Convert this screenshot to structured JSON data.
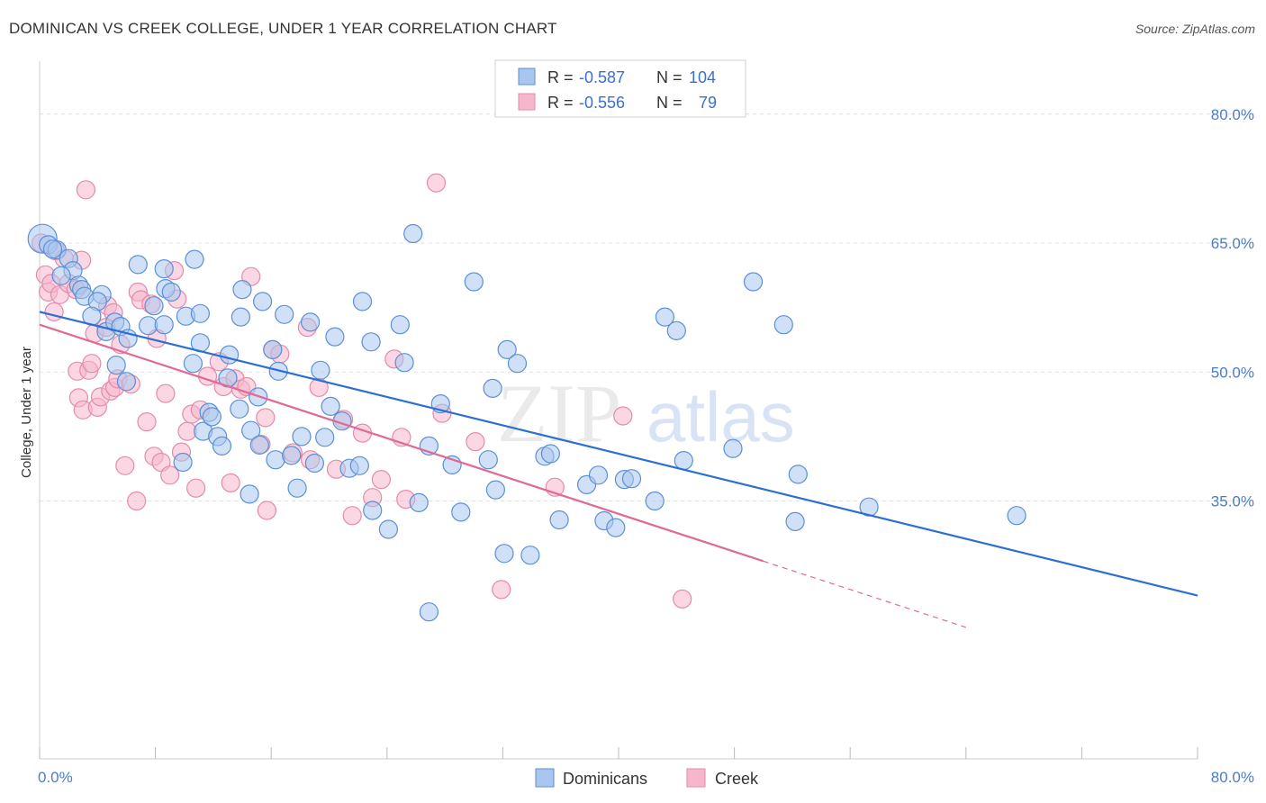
{
  "header": {
    "title": "DOMINICAN VS CREEK COLLEGE, UNDER 1 YEAR CORRELATION CHART",
    "source": "Source: ZipAtlas.com"
  },
  "watermark": {
    "zip": "ZIP",
    "atlas": "atlas"
  },
  "legend_top": [
    {
      "r_label": "R =",
      "r_value": "-0.587",
      "n_label": "N =",
      "n_value": "104"
    },
    {
      "r_label": "R =",
      "r_value": "-0.556",
      "n_label": "N =",
      "n_value": "79"
    }
  ],
  "legend_bottom": [
    "Dominicans",
    "Creek"
  ],
  "chart_data": {
    "type": "scatter",
    "title": "DOMINICAN VS CREEK COLLEGE, UNDER 1 YEAR CORRELATION CHART",
    "xlabel": "",
    "ylabel": "College, Under 1 year",
    "xlim": [
      0,
      80
    ],
    "ylim": [
      20,
      82
    ],
    "x_tick_labels": [
      "0.0%",
      "80.0%"
    ],
    "y_ticks": [
      35,
      50,
      65,
      80
    ],
    "y_tick_labels": [
      "35.0%",
      "50.0%",
      "65.0%",
      "80.0%"
    ],
    "grid": true,
    "legend_position": "top-center",
    "colors": {
      "dominicans_fill": "#a9c7ee",
      "dominicans_stroke": "#5b8fd6",
      "dominicans_line": "#2a6fd1",
      "creek_fill": "#f6b7cc",
      "creek_stroke": "#e48aab",
      "creek_line": "#e06a97",
      "tick_text": "#4a7cc9"
    },
    "series": [
      {
        "name": "Dominicans",
        "trend": {
          "x": [
            0,
            80
          ],
          "y": [
            57.0,
            24.0
          ]
        },
        "points": [
          [
            0.2,
            65.5
          ],
          [
            0.6,
            64.8
          ],
          [
            1.2,
            64.2
          ],
          [
            2.0,
            63.2
          ],
          [
            2.3,
            61.8
          ],
          [
            1.5,
            61.2
          ],
          [
            2.7,
            60.1
          ],
          [
            2.9,
            59.6
          ],
          [
            3.1,
            58.8
          ],
          [
            4.3,
            59.0
          ],
          [
            4.0,
            58.2
          ],
          [
            3.6,
            56.5
          ],
          [
            4.6,
            54.7
          ],
          [
            5.2,
            55.8
          ],
          [
            5.6,
            55.3
          ],
          [
            5.3,
            50.8
          ],
          [
            6.0,
            48.9
          ],
          [
            6.1,
            53.9
          ],
          [
            6.8,
            62.5
          ],
          [
            7.5,
            55.4
          ],
          [
            7.9,
            57.7
          ],
          [
            8.6,
            62.0
          ],
          [
            8.6,
            55.5
          ],
          [
            8.7,
            59.7
          ],
          [
            9.1,
            59.3
          ],
          [
            10.1,
            56.5
          ],
          [
            10.6,
            51.0
          ],
          [
            10.7,
            63.1
          ],
          [
            11.1,
            56.8
          ],
          [
            11.1,
            53.4
          ],
          [
            11.3,
            43.1
          ],
          [
            11.7,
            45.3
          ],
          [
            11.9,
            44.8
          ],
          [
            12.3,
            42.5
          ],
          [
            12.6,
            41.4
          ],
          [
            13.0,
            49.3
          ],
          [
            13.1,
            52.0
          ],
          [
            13.8,
            45.7
          ],
          [
            13.9,
            56.4
          ],
          [
            14.6,
            43.2
          ],
          [
            14.5,
            35.8
          ],
          [
            15.1,
            47.1
          ],
          [
            15.2,
            41.5
          ],
          [
            15.4,
            58.2
          ],
          [
            16.1,
            52.6
          ],
          [
            16.3,
            39.8
          ],
          [
            16.5,
            50.1
          ],
          [
            16.9,
            56.7
          ],
          [
            17.4,
            40.3
          ],
          [
            17.8,
            36.5
          ],
          [
            18.1,
            42.5
          ],
          [
            18.7,
            55.8
          ],
          [
            19.0,
            39.4
          ],
          [
            19.4,
            50.2
          ],
          [
            19.7,
            42.4
          ],
          [
            20.1,
            46.0
          ],
          [
            20.4,
            54.1
          ],
          [
            20.9,
            44.3
          ],
          [
            21.4,
            38.8
          ],
          [
            22.1,
            39.1
          ],
          [
            22.3,
            58.2
          ],
          [
            22.9,
            53.5
          ],
          [
            23.0,
            33.9
          ],
          [
            24.1,
            31.7
          ],
          [
            24.9,
            55.5
          ],
          [
            25.2,
            51.1
          ],
          [
            25.8,
            66.1
          ],
          [
            26.2,
            34.8
          ],
          [
            26.9,
            41.4
          ],
          [
            27.7,
            46.3
          ],
          [
            28.5,
            39.2
          ],
          [
            29.1,
            33.7
          ],
          [
            30.0,
            60.5
          ],
          [
            31.0,
            39.8
          ],
          [
            31.3,
            48.1
          ],
          [
            31.5,
            36.3
          ],
          [
            32.1,
            28.9
          ],
          [
            32.3,
            52.6
          ],
          [
            33.0,
            51.0
          ],
          [
            33.9,
            28.7
          ],
          [
            34.9,
            40.2
          ],
          [
            35.3,
            40.5
          ],
          [
            35.9,
            32.8
          ],
          [
            37.8,
            36.9
          ],
          [
            38.6,
            38.0
          ],
          [
            39.0,
            32.7
          ],
          [
            39.8,
            31.9
          ],
          [
            40.4,
            37.5
          ],
          [
            40.9,
            37.6
          ],
          [
            42.5,
            35.0
          ],
          [
            43.2,
            56.4
          ],
          [
            44.0,
            54.8
          ],
          [
            44.5,
            39.7
          ],
          [
            47.9,
            41.1
          ],
          [
            49.3,
            60.5
          ],
          [
            51.4,
            55.5
          ],
          [
            52.2,
            32.6
          ],
          [
            52.4,
            38.1
          ],
          [
            57.3,
            34.3
          ],
          [
            67.5,
            33.3
          ],
          [
            26.9,
            22.1
          ],
          [
            0.9,
            64.3
          ],
          [
            14.0,
            59.6
          ],
          [
            9.9,
            39.5
          ]
        ]
      },
      {
        "name": "Creek",
        "trend": {
          "x": [
            0,
            50
          ],
          "y": [
            55.5,
            28.0
          ]
        },
        "points": [
          [
            0.1,
            65.0
          ],
          [
            0.4,
            61.3
          ],
          [
            0.6,
            59.3
          ],
          [
            0.8,
            60.3
          ],
          [
            1.0,
            57.0
          ],
          [
            1.1,
            64.1
          ],
          [
            1.4,
            59.0
          ],
          [
            1.7,
            63.2
          ],
          [
            2.0,
            60.3
          ],
          [
            2.5,
            59.6
          ],
          [
            2.6,
            50.1
          ],
          [
            2.7,
            47.0
          ],
          [
            2.9,
            63.0
          ],
          [
            3.0,
            45.6
          ],
          [
            3.2,
            71.2
          ],
          [
            3.4,
            50.2
          ],
          [
            3.6,
            51.0
          ],
          [
            3.8,
            54.5
          ],
          [
            4.0,
            45.9
          ],
          [
            4.2,
            47.1
          ],
          [
            4.6,
            55.2
          ],
          [
            4.7,
            57.7
          ],
          [
            4.9,
            47.8
          ],
          [
            5.1,
            56.9
          ],
          [
            5.2,
            48.2
          ],
          [
            5.4,
            49.2
          ],
          [
            5.6,
            53.2
          ],
          [
            5.9,
            39.1
          ],
          [
            6.3,
            48.6
          ],
          [
            6.7,
            35.0
          ],
          [
            6.8,
            59.3
          ],
          [
            7.0,
            58.4
          ],
          [
            7.4,
            44.2
          ],
          [
            7.7,
            57.9
          ],
          [
            7.9,
            40.2
          ],
          [
            8.1,
            53.9
          ],
          [
            8.4,
            39.5
          ],
          [
            8.7,
            47.5
          ],
          [
            9.0,
            38.0
          ],
          [
            9.3,
            61.8
          ],
          [
            9.5,
            58.5
          ],
          [
            9.8,
            40.7
          ],
          [
            10.2,
            43.1
          ],
          [
            10.5,
            45.1
          ],
          [
            10.8,
            36.5
          ],
          [
            11.1,
            45.6
          ],
          [
            11.6,
            49.5
          ],
          [
            12.4,
            51.2
          ],
          [
            12.7,
            48.3
          ],
          [
            13.2,
            37.1
          ],
          [
            13.5,
            49.2
          ],
          [
            13.9,
            48.0
          ],
          [
            14.3,
            48.3
          ],
          [
            14.6,
            61.1
          ],
          [
            15.3,
            41.6
          ],
          [
            15.6,
            44.7
          ],
          [
            15.7,
            33.9
          ],
          [
            16.1,
            52.6
          ],
          [
            16.6,
            52.1
          ],
          [
            17.5,
            40.6
          ],
          [
            18.5,
            55.2
          ],
          [
            18.7,
            39.8
          ],
          [
            19.3,
            48.2
          ],
          [
            20.5,
            38.7
          ],
          [
            21.0,
            44.5
          ],
          [
            21.6,
            33.3
          ],
          [
            22.3,
            42.9
          ],
          [
            23.0,
            35.4
          ],
          [
            23.6,
            37.5
          ],
          [
            24.5,
            51.5
          ],
          [
            25.0,
            42.4
          ],
          [
            25.3,
            35.2
          ],
          [
            27.4,
            72.0
          ],
          [
            27.8,
            45.2
          ],
          [
            30.1,
            41.9
          ],
          [
            31.9,
            24.7
          ],
          [
            35.6,
            36.6
          ],
          [
            40.3,
            44.9
          ],
          [
            44.4,
            23.6
          ]
        ]
      }
    ]
  }
}
